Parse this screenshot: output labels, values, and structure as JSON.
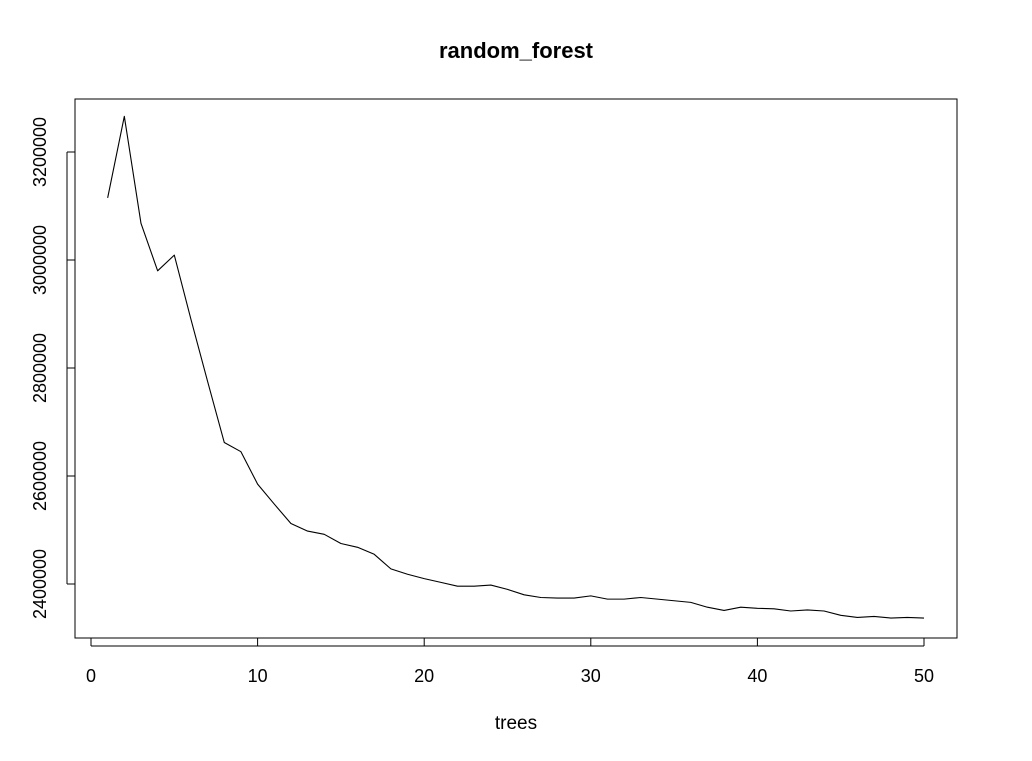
{
  "chart_data": {
    "type": "line",
    "title": "random_forest",
    "xlabel": "trees",
    "ylabel": "",
    "xlim": [
      0,
      50
    ],
    "ylim": [
      2300000,
      3300000
    ],
    "xticks": [
      0,
      10,
      20,
      30,
      40,
      50
    ],
    "yticks": [
      2400000,
      2600000,
      2800000,
      3000000,
      3200000
    ],
    "grid": false,
    "legend": false,
    "series": [
      {
        "x": [
          1,
          2,
          3,
          4,
          5,
          6,
          7,
          8,
          9,
          10,
          11,
          12,
          13,
          14,
          15,
          16,
          17,
          18,
          19,
          20,
          21,
          22,
          23,
          24,
          25,
          26,
          27,
          28,
          29,
          30,
          31,
          32,
          33,
          34,
          35,
          36,
          37,
          38,
          39,
          40,
          41,
          42,
          43,
          44,
          45,
          46,
          47,
          48,
          49,
          50
        ],
        "values": [
          3115000,
          3266000,
          3068000,
          2980000,
          3009000,
          2890000,
          2775000,
          2662000,
          2645000,
          2585000,
          2548000,
          2512000,
          2498000,
          2492000,
          2475000,
          2468000,
          2455000,
          2428000,
          2418000,
          2410000,
          2403000,
          2396000,
          2396000,
          2398000,
          2390000,
          2380000,
          2375000,
          2374000,
          2374000,
          2378000,
          2372000,
          2372000,
          2375000,
          2372000,
          2369000,
          2366000,
          2357000,
          2351000,
          2357000,
          2355000,
          2354000,
          2350000,
          2352000,
          2350000,
          2342000,
          2338000,
          2340000,
          2337000,
          2338000,
          2337000
        ]
      }
    ]
  }
}
